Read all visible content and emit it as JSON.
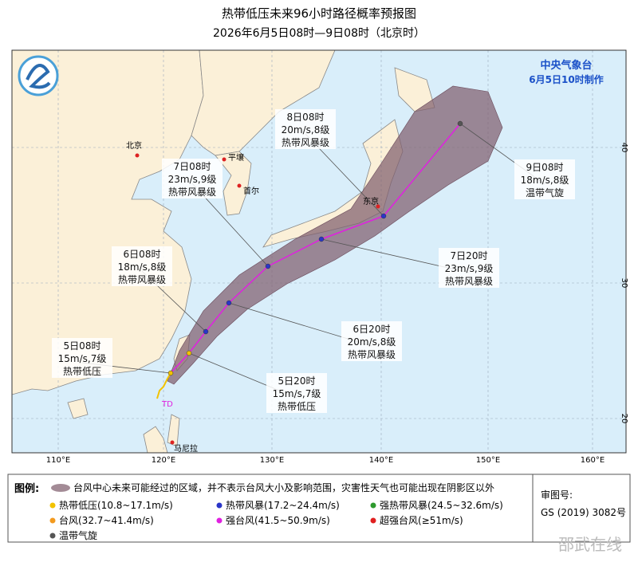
{
  "header": {
    "title": "热带低压未来96小时路径概率预报图",
    "subtitle": "2026年6月5日08时—9日08时（北京时）"
  },
  "agency": {
    "name": "中央气象台",
    "made": "6月5日10时制作"
  },
  "forecast_points": [
    {
      "time": "5日08时",
      "wind": "15m/s,7级",
      "level": "热带低压"
    },
    {
      "time": "5日20时",
      "wind": "15m/s,7级",
      "level": "热带低压"
    },
    {
      "time": "6日08时",
      "wind": "18m/s,8级",
      "level": "热带风暴级"
    },
    {
      "time": "6日20时",
      "wind": "20m/s,8级",
      "level": "热带风暴级"
    },
    {
      "time": "7日08时",
      "wind": "23m/s,9级",
      "level": "热带风暴级"
    },
    {
      "time": "7日20时",
      "wind": "23m/s,9级",
      "level": "热带风暴级"
    },
    {
      "time": "8日08时",
      "wind": "20m/s,8级",
      "level": "热带风暴级"
    },
    {
      "time": "9日08时",
      "wind": "18m/s,8级",
      "level": "温带气旋"
    }
  ],
  "map_labels": {
    "cities": [
      "北京",
      "平壤",
      "首尔",
      "东京",
      "马尼拉"
    ],
    "storm_tag": "TD",
    "longitudes": [
      "110°E",
      "120°E",
      "130°E",
      "140°E",
      "150°E",
      "160°E"
    ],
    "latitudes": [
      "40",
      "30",
      "20"
    ]
  },
  "legend": {
    "title": "图例:",
    "cone": "台风中心未来可能经过的区域，并不表示台风大小及影响范围，灾害性天气也可能出现在阴影区以外",
    "items": [
      {
        "label": "热带低压(10.8~17.1m/s)",
        "color": "#f2c200"
      },
      {
        "label": "热带风暴(17.2~24.4m/s)",
        "color": "#2a35c8"
      },
      {
        "label": "强热带风暴(24.5~32.6m/s)",
        "color": "#2e9a2e"
      },
      {
        "label": "台风(32.7~41.4m/s)",
        "color": "#f39a1e"
      },
      {
        "label": "强台风(41.5~50.9m/s)",
        "color": "#e020e0"
      },
      {
        "label": "超强台风(≥51m/s)",
        "color": "#e02020"
      },
      {
        "label": "温带气旋",
        "color": "#555555"
      }
    ]
  },
  "approval": {
    "label": "审图号:",
    "number": "GS (2019) 3082号"
  },
  "watermark": "邵武在线"
}
